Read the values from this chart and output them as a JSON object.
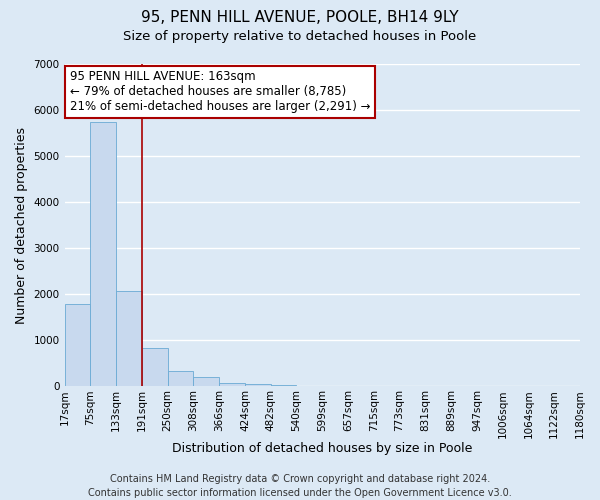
{
  "title": "95, PENN HILL AVENUE, POOLE, BH14 9LY",
  "subtitle": "Size of property relative to detached houses in Poole",
  "xlabel": "Distribution of detached houses by size in Poole",
  "ylabel": "Number of detached properties",
  "bin_labels": [
    "17sqm",
    "75sqm",
    "133sqm",
    "191sqm",
    "250sqm",
    "308sqm",
    "366sqm",
    "424sqm",
    "482sqm",
    "540sqm",
    "599sqm",
    "657sqm",
    "715sqm",
    "773sqm",
    "831sqm",
    "889sqm",
    "947sqm",
    "1006sqm",
    "1064sqm",
    "1122sqm",
    "1180sqm"
  ],
  "bar_heights": [
    1780,
    5750,
    2060,
    830,
    330,
    200,
    80,
    40,
    20,
    10,
    5,
    3,
    2,
    1,
    1,
    1,
    0,
    0,
    0,
    0
  ],
  "bar_color": "#c8d9ee",
  "bar_edge_color": "#6aaad4",
  "vline_position": 3,
  "vline_color": "#aa0000",
  "annotation_title": "95 PENN HILL AVENUE: 163sqm",
  "annotation_line1": "← 79% of detached houses are smaller (8,785)",
  "annotation_line2": "21% of semi-detached houses are larger (2,291) →",
  "annotation_box_color": "#ffffff",
  "annotation_box_edge": "#aa0000",
  "ylim": [
    0,
    7000
  ],
  "yticks": [
    0,
    1000,
    2000,
    3000,
    4000,
    5000,
    6000,
    7000
  ],
  "footer1": "Contains HM Land Registry data © Crown copyright and database right 2024.",
  "footer2": "Contains public sector information licensed under the Open Government Licence v3.0.",
  "background_color": "#dce9f5",
  "plot_bg_color": "#dce9f5",
  "grid_color": "#ffffff",
  "title_fontsize": 11,
  "subtitle_fontsize": 9.5,
  "axis_label_fontsize": 9,
  "tick_fontsize": 7.5,
  "annotation_fontsize": 8.5,
  "footer_fontsize": 7
}
